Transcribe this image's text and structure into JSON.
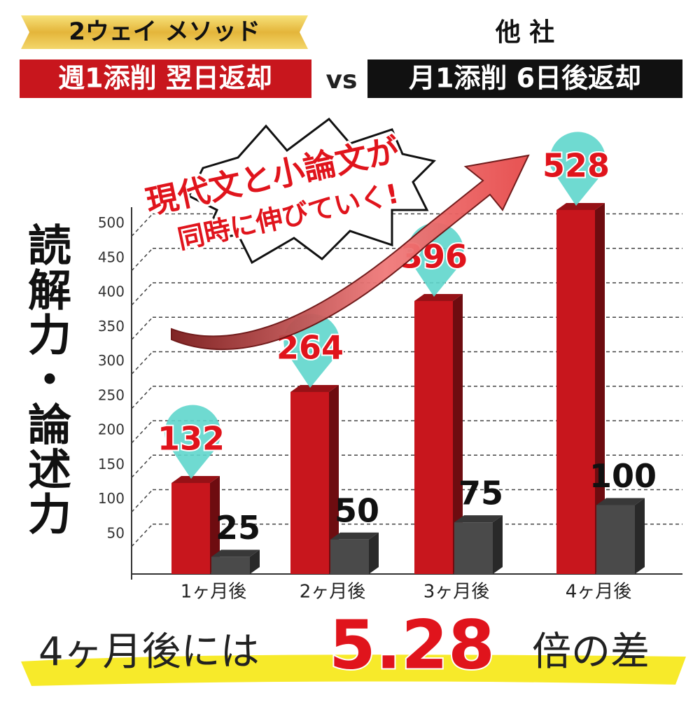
{
  "chart_data": {
    "type": "bar",
    "left_heading": "2ウェイ メソッド",
    "right_heading": "他 社",
    "vs_label": "vs",
    "callout": [
      "現代文と小論文が",
      "同時に伸びていく!"
    ],
    "y_label": "読解力・論述力",
    "categories": [
      "1ヶ月後",
      "2ヶ月後",
      "3ヶ月後",
      "4ヶ月後"
    ],
    "series": [
      {
        "name": "週1添削 翌日返却",
        "color": "#c8161d",
        "values": [
          132,
          264,
          396,
          528
        ]
      },
      {
        "name": "月1添削 6日後返却",
        "color": "#4a4a4a",
        "values": [
          25,
          50,
          75,
          100
        ]
      }
    ],
    "ylim": [
      0,
      532
    ],
    "yticks": [
      50,
      100,
      150,
      200,
      250,
      300,
      350,
      400,
      450,
      500
    ],
    "grid": true,
    "summary": {
      "before": "4ヶ月後には",
      "highlight": "5.28",
      "after": "倍の差"
    }
  }
}
